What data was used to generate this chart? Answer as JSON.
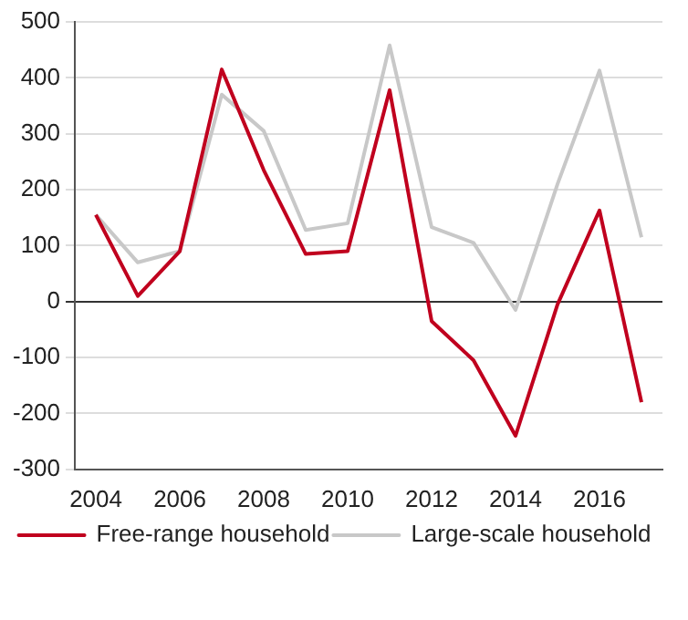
{
  "chart_data": {
    "type": "line",
    "categories": [
      "2004",
      null,
      "2006",
      null,
      "2008",
      null,
      "2010",
      null,
      "2012",
      null,
      "2014",
      null,
      "2016",
      null
    ],
    "series": [
      {
        "name": "Free-range household",
        "color": "#c0001e",
        "values": [
          155,
          10,
          90,
          415,
          235,
          85,
          90,
          378,
          -35,
          -105,
          -240,
          -5,
          163,
          -180
        ]
      },
      {
        "name": "Large-scale household",
        "color": "#c8c8c8",
        "values": [
          155,
          70,
          90,
          370,
          305,
          128,
          140,
          458,
          133,
          105,
          -15,
          210,
          413,
          115
        ]
      }
    ],
    "ylim": [
      -300,
      500
    ],
    "yticks": [
      -300,
      -200,
      -100,
      0,
      100,
      200,
      300,
      400,
      500
    ],
    "grid": "y",
    "legend": "bottom",
    "marker": "none",
    "line_style": "solid"
  }
}
